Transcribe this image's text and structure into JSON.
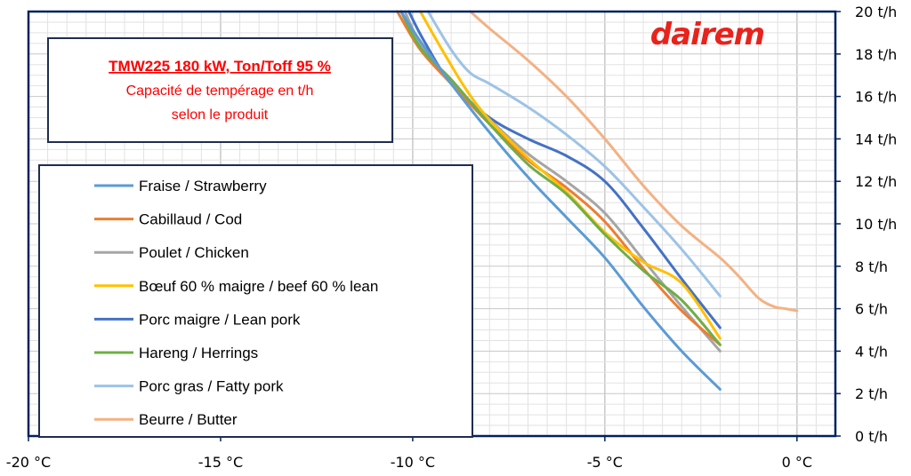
{
  "chart_data": {
    "type": "line",
    "title_lines": [
      "TMW225  180 kW,  Ton/Toff 95 %",
      "Capacité de tempérage en t/h",
      "selon le produit"
    ],
    "xlabel": "",
    "ylabel": "",
    "xlim": [
      -20,
      1
    ],
    "ylim": [
      0,
      20
    ],
    "x_ticks": [
      -20,
      -15,
      -10,
      -5,
      0
    ],
    "x_tick_labels": [
      "-20 °C",
      "-15 °C",
      "-10 °C",
      "-5 °C",
      "0 °C"
    ],
    "y_ticks": [
      0,
      2,
      4,
      6,
      8,
      10,
      12,
      14,
      16,
      18,
      20
    ],
    "y_tick_labels": [
      "0 t/h",
      "2 t/h",
      "4 t/h",
      "6 t/h",
      "8 t/h",
      "10 t/h",
      "12 t/h",
      "14 t/h",
      "16 t/h",
      "18 t/h",
      "20 t/h"
    ],
    "y_axis_side": "right",
    "grid": true,
    "legend_position": "left",
    "logo_text": "dairem",
    "colors": {
      "axis": "#002060",
      "title": "#ff0000",
      "logo": "#e8231c",
      "grid_major": "#c8c8c8",
      "grid_minor": "#e2e2e2"
    },
    "series": [
      {
        "name": "Fraise / Strawberry",
        "color": "#5b9bd5",
        "x": [
          -10.3,
          -9.8,
          -9,
          -8,
          -7,
          -6,
          -5,
          -4,
          -3,
          -2
        ],
        "y": [
          20,
          18.6,
          16.6,
          14.3,
          12.2,
          10.3,
          8.4,
          6.1,
          4.0,
          2.2
        ]
      },
      {
        "name": "Cabillaud / Cod",
        "color": "#ed7d31",
        "x": [
          -10.4,
          -9.8,
          -9,
          -8,
          -7,
          -6,
          -5,
          -4,
          -3,
          -2
        ],
        "y": [
          20,
          18.2,
          16.6,
          14.7,
          13.0,
          11.7,
          10.1,
          7.9,
          5.9,
          4.3
        ]
      },
      {
        "name": "Poulet / Chicken",
        "color": "#a5a5a5",
        "x": [
          -10.2,
          -9.8,
          -9,
          -8,
          -7,
          -6,
          -5,
          -4,
          -3,
          -2
        ],
        "y": [
          20,
          18.5,
          16.7,
          14.9,
          13.3,
          12.0,
          10.5,
          8.3,
          6.1,
          4.0
        ]
      },
      {
        "name": "Bœuf 60 % maigre / beef 60 % lean",
        "color": "#ffc000",
        "x": [
          -9.8,
          -9.3,
          -8.6,
          -8,
          -7,
          -6,
          -5,
          -4,
          -3,
          -2
        ],
        "y": [
          20,
          18.4,
          16.3,
          14.9,
          13.1,
          11.5,
          9.6,
          8.2,
          7.2,
          4.6
        ]
      },
      {
        "name": "Porc maigre / Lean pork",
        "color": "#4472c4",
        "x": [
          -10.1,
          -9.7,
          -9,
          -8,
          -7,
          -6,
          -5,
          -4,
          -3,
          -2
        ],
        "y": [
          20,
          18.6,
          16.6,
          15.0,
          14.0,
          13.2,
          12.0,
          9.8,
          7.4,
          5.1
        ]
      },
      {
        "name": "Hareng / Herrings",
        "color": "#70ad47",
        "x": [
          -10.3,
          -9.8,
          -9,
          -8,
          -7,
          -6,
          -5,
          -4,
          -3,
          -2
        ],
        "y": [
          20,
          18.3,
          16.8,
          14.7,
          12.8,
          11.4,
          9.5,
          7.8,
          6.4,
          4.3
        ]
      },
      {
        "name": "Porc gras / Fatty pork",
        "color": "#9dc3e6",
        "x": [
          -9.6,
          -9.0,
          -8.5,
          -8,
          -7,
          -6,
          -5,
          -4,
          -3,
          -2
        ],
        "y": [
          20,
          18.2,
          17.1,
          16.6,
          15.5,
          14.2,
          12.7,
          10.8,
          8.8,
          6.6
        ]
      },
      {
        "name": "Beurre / Butter",
        "color": "#f4b183",
        "x": [
          -8.5,
          -8,
          -7,
          -6,
          -5,
          -4,
          -3,
          -2,
          -1.5,
          -1,
          -0.6,
          -0.3,
          0
        ],
        "y": [
          20,
          19.2,
          17.7,
          16.0,
          14.0,
          11.8,
          9.9,
          8.4,
          7.5,
          6.5,
          6.1,
          6.0,
          5.9
        ]
      }
    ]
  }
}
